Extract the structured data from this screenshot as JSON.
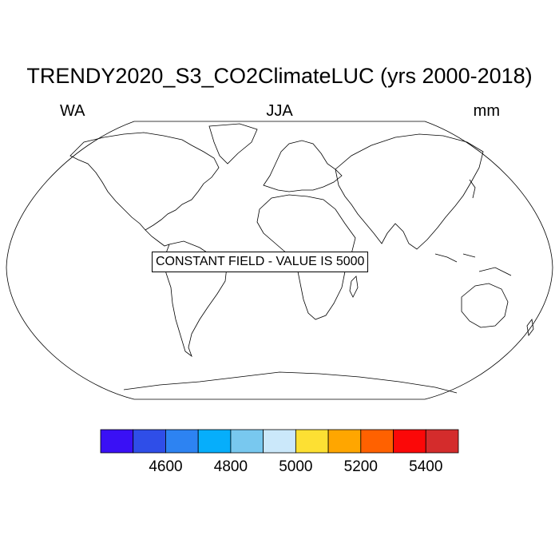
{
  "title": "TRENDY2020_S3_CO2ClimateLUC (yrs 2000-2018)",
  "left_label": "WA",
  "center_label": "JJA",
  "right_label": "mm",
  "map_note": "CONSTANT FIELD - VALUE IS 5000",
  "colorbar": {
    "colors": [
      "#3a10f5",
      "#2f4ee8",
      "#2d83f2",
      "#06aefb",
      "#78c8ef",
      "#cbe8fa",
      "#fde033",
      "#ffa600",
      "#ff6100",
      "#fb0808",
      "#d42c2c"
    ],
    "tick_labels": [
      "4600",
      "4800",
      "5000",
      "5200",
      "5400"
    ],
    "label_boxes": [
      2,
      4,
      6,
      8,
      10
    ]
  }
}
